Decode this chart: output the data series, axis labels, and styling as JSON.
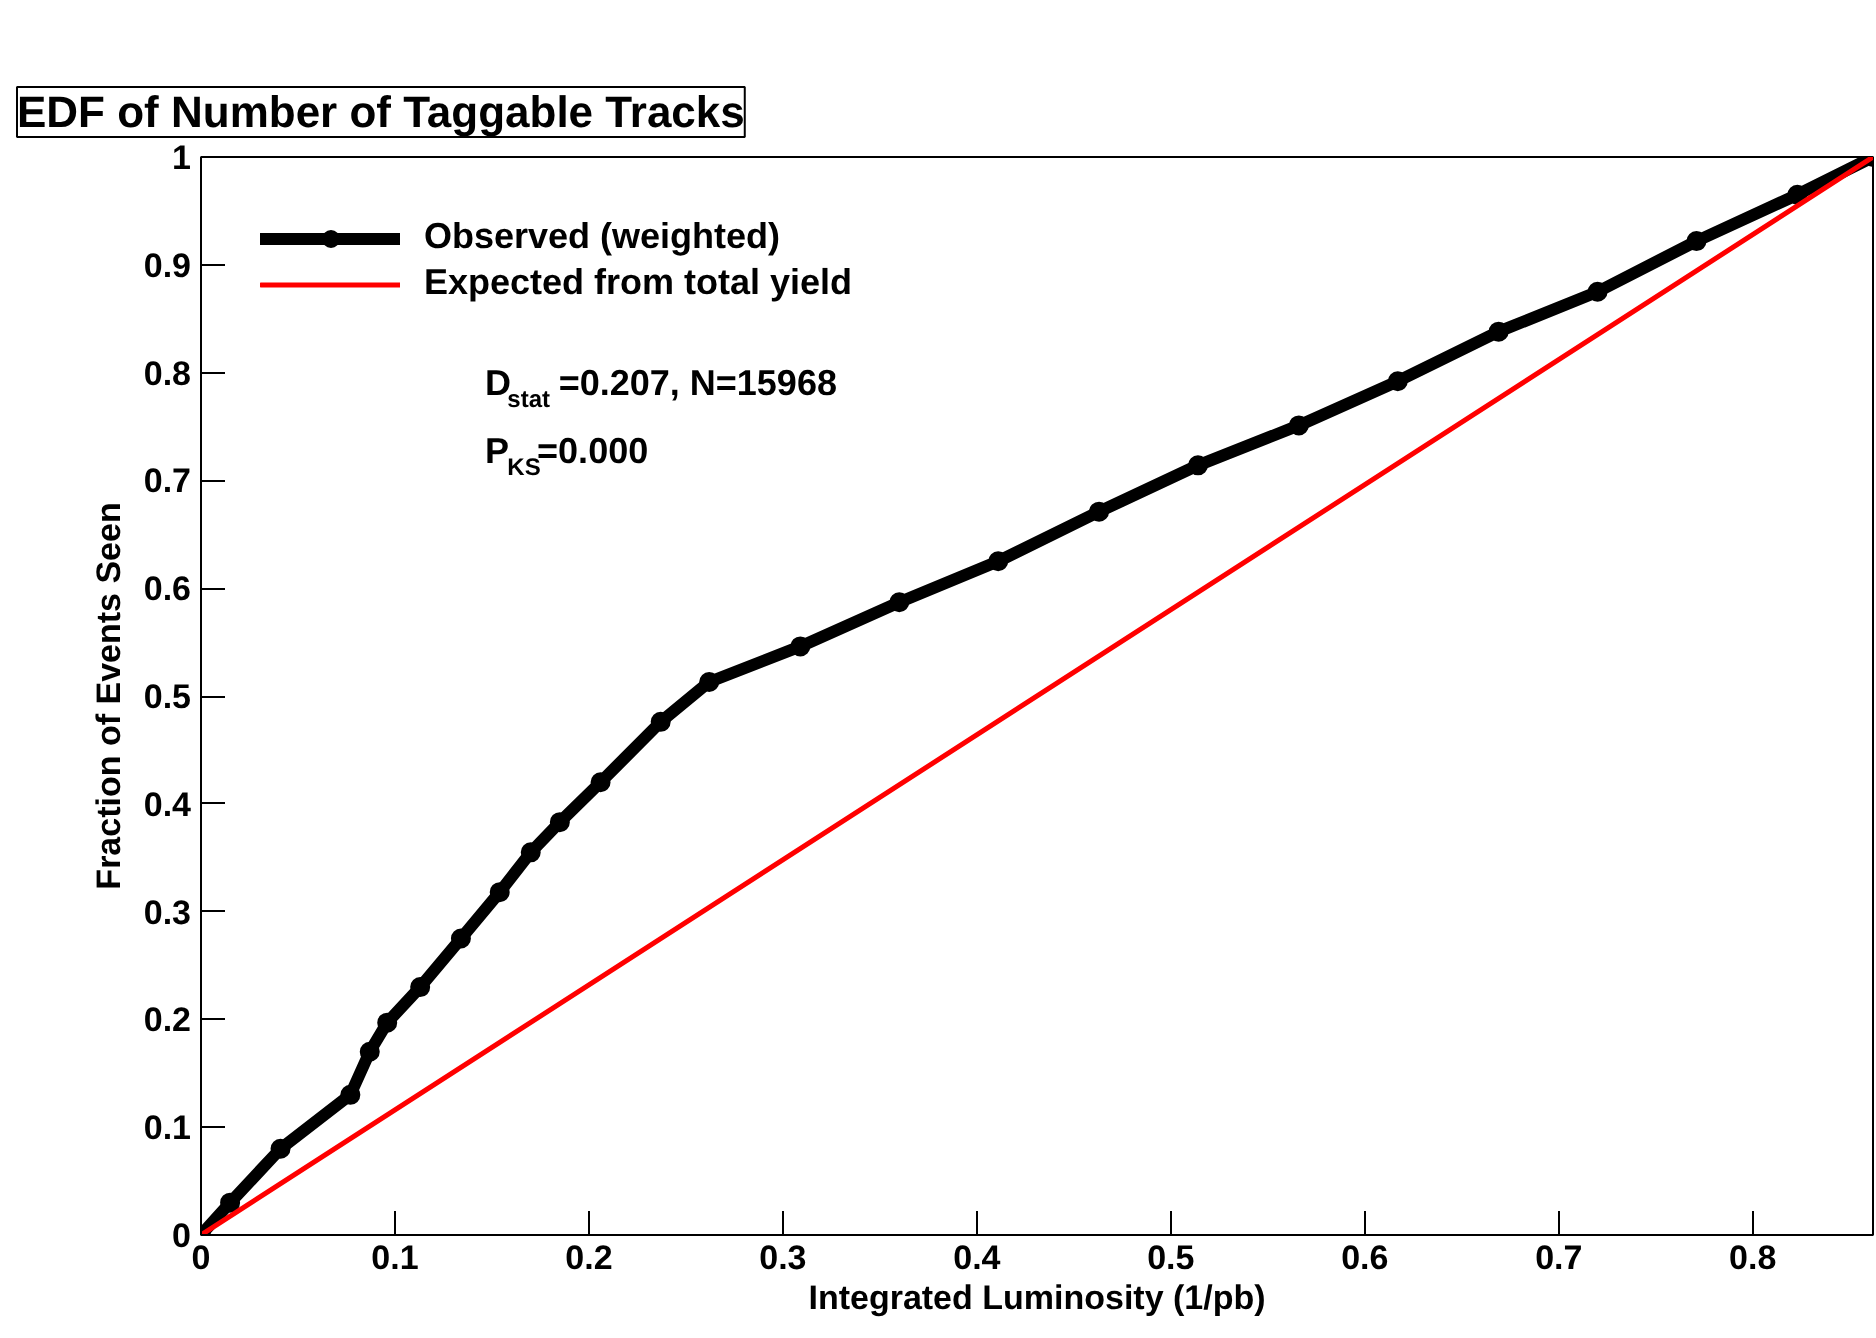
{
  "chart_data": {
    "type": "line",
    "title": "EDF of Number of Taggable Tracks",
    "xlabel": "Integrated Luminosity (1/pb)",
    "ylabel": "Fraction of Events Seen",
    "xlim": [
      0,
      0.862
    ],
    "ylim": [
      0,
      1
    ],
    "xticks": [
      0,
      0.1,
      0.2,
      0.3,
      0.4,
      0.5,
      0.6,
      0.7,
      0.8
    ],
    "yticks": [
      0,
      0.1,
      0.2,
      0.3,
      0.4,
      0.5,
      0.6,
      0.7,
      0.8,
      0.9,
      1
    ],
    "grid": false,
    "legend": "top left",
    "series": [
      {
        "name": "Observed (weighted)",
        "color": "#000000",
        "marker": "circle",
        "x": [
          0,
          0.015,
          0.041,
          0.077,
          0.087,
          0.096,
          0.113,
          0.134,
          0.154,
          0.17,
          0.185,
          0.206,
          0.237,
          0.262,
          0.309,
          0.36,
          0.411,
          0.463,
          0.514,
          0.566,
          0.617,
          0.669,
          0.72,
          0.771,
          0.823,
          0.862
        ],
        "values": [
          0,
          0.03,
          0.08,
          0.13,
          0.17,
          0.197,
          0.23,
          0.275,
          0.318,
          0.355,
          0.383,
          0.42,
          0.476,
          0.513,
          0.546,
          0.587,
          0.625,
          0.671,
          0.714,
          0.751,
          0.792,
          0.838,
          0.875,
          0.922,
          0.965,
          1
        ]
      },
      {
        "name": "Expected from total yield",
        "color": "#ff0000",
        "type": "line",
        "x": [
          0,
          0.862
        ],
        "values": [
          0,
          1
        ]
      }
    ],
    "annotations": [
      "D$_{stat}$=0.207, N=15968",
      "P$_{KS}$=0.000"
    ]
  }
}
